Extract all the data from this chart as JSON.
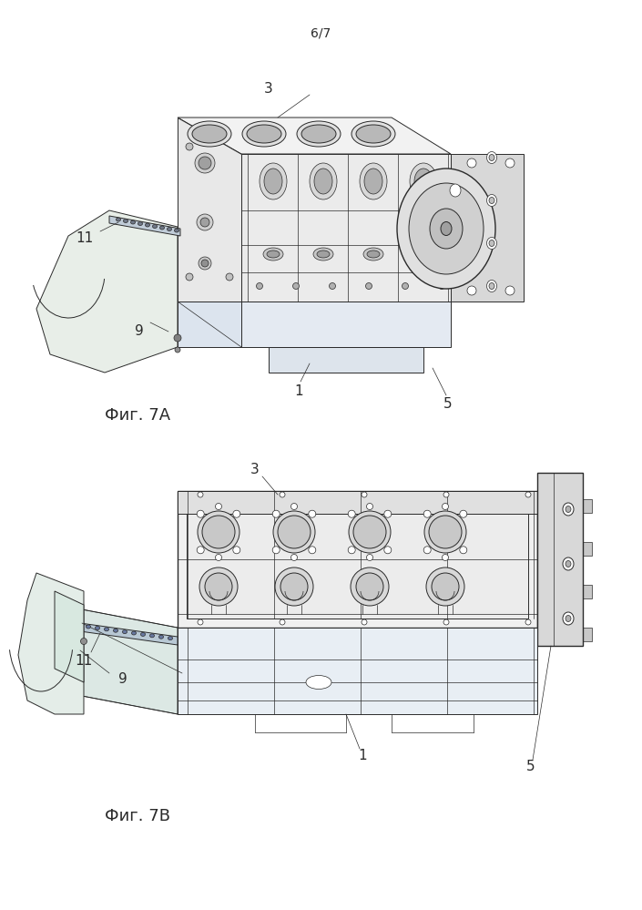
{
  "page_number": "6/7",
  "background_color": "#ffffff",
  "line_color": "#2a2a2a",
  "fig_width": 7.05,
  "fig_height": 9.99,
  "dpi": 100,
  "page_number_fontsize": 10,
  "fig7A_label": "Фиг. 7A",
  "fig7B_label": "Фиг. 7B",
  "label_fontsize": 13,
  "annotation_fontsize": 11
}
